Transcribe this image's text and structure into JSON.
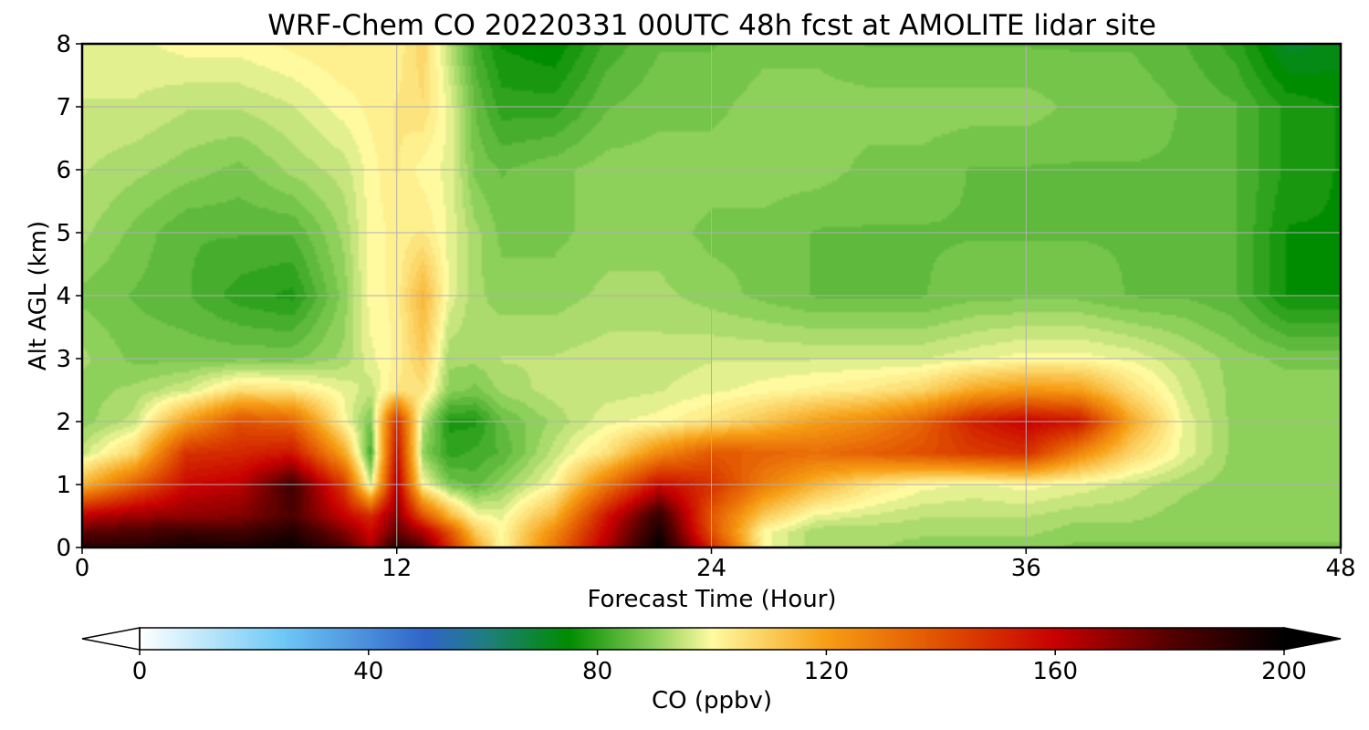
{
  "chart_data": {
    "type": "heatmap",
    "title": "WRF-Chem CO  20220331 00UTC 48h fcst at AMOLITE lidar site",
    "xlabel": "Forecast Time (Hour)",
    "ylabel": "Alt AGL (km)",
    "xlim": [
      0,
      48
    ],
    "ylim": [
      0,
      8
    ],
    "x_ticks": [
      "0",
      "12",
      "24",
      "36",
      "48"
    ],
    "x_tick_values": [
      0,
      12,
      24,
      36,
      48
    ],
    "y_ticks": [
      "0",
      "1",
      "2",
      "3",
      "4",
      "5",
      "6",
      "7",
      "8"
    ],
    "y_tick_values": [
      0,
      1,
      2,
      3,
      4,
      5,
      6,
      7,
      8
    ],
    "grid": true,
    "colorbar": {
      "label": "CO  (ppbv)",
      "range": [
        0,
        200
      ],
      "ticks": [
        "0",
        "40",
        "80",
        "120",
        "160",
        "200"
      ],
      "tick_values": [
        0,
        40,
        80,
        120,
        160,
        200
      ],
      "extend": "both",
      "colors": [
        {
          "value": 0,
          "color": "#ffffff"
        },
        {
          "value": 25,
          "color": "#6ec8f5"
        },
        {
          "value": 50,
          "color": "#2f64c8"
        },
        {
          "value": 60,
          "color": "#1f7d84"
        },
        {
          "value": 75,
          "color": "#008c00"
        },
        {
          "value": 90,
          "color": "#8dd05a"
        },
        {
          "value": 100,
          "color": "#fffaa0"
        },
        {
          "value": 120,
          "color": "#f79e14"
        },
        {
          "value": 140,
          "color": "#e05000"
        },
        {
          "value": 160,
          "color": "#c80000"
        },
        {
          "value": 180,
          "color": "#550000"
        },
        {
          "value": 200,
          "color": "#000000"
        }
      ]
    },
    "times": [
      0,
      2,
      4,
      6,
      8,
      10,
      11,
      12,
      13,
      14,
      15,
      16,
      18,
      20,
      22,
      24,
      26,
      28,
      30,
      32,
      34,
      36,
      38,
      40,
      42,
      44,
      46,
      48
    ],
    "altitudes": [
      0,
      0.25,
      0.5,
      1,
      1.5,
      2,
      2.5,
      3,
      4,
      5,
      6,
      7,
      8
    ],
    "values": [
      [
        192,
        190,
        196,
        194,
        198,
        182,
        165,
        190,
        180,
        150,
        120,
        100,
        130,
        165,
        200,
        150,
        100,
        92,
        92,
        90,
        90,
        90,
        88,
        88,
        88,
        88,
        88,
        88
      ],
      [
        178,
        182,
        186,
        184,
        192,
        172,
        158,
        178,
        165,
        140,
        110,
        100,
        125,
        160,
        195,
        140,
        100,
        92,
        92,
        92,
        92,
        92,
        90,
        90,
        90,
        90,
        90,
        90
      ],
      [
        162,
        168,
        170,
        172,
        182,
        160,
        150,
        172,
        140,
        115,
        100,
        98,
        115,
        155,
        188,
        138,
        110,
        98,
        96,
        94,
        94,
        94,
        92,
        92,
        90,
        90,
        90,
        90
      ],
      [
        115,
        136,
        158,
        162,
        185,
        145,
        95,
        165,
        100,
        88,
        85,
        90,
        100,
        130,
        158,
        148,
        128,
        115,
        105,
        100,
        98,
        100,
        98,
        95,
        92,
        90,
        90,
        90
      ],
      [
        95,
        108,
        148,
        150,
        155,
        118,
        82,
        158,
        90,
        80,
        82,
        84,
        95,
        105,
        125,
        138,
        135,
        132,
        136,
        140,
        145,
        148,
        126,
        108,
        98,
        90,
        90,
        90
      ],
      [
        90,
        95,
        120,
        140,
        135,
        100,
        88,
        150,
        94,
        78,
        78,
        86,
        92,
        98,
        100,
        105,
        112,
        120,
        125,
        135,
        152,
        160,
        155,
        118,
        98,
        90,
        90,
        90
      ],
      [
        90,
        92,
        96,
        106,
        104,
        98,
        95,
        104,
        105,
        90,
        88,
        92,
        95,
        95,
        96,
        98,
        100,
        102,
        104,
        108,
        118,
        122,
        120,
        106,
        96,
        90,
        90,
        90
      ],
      [
        92,
        88,
        88,
        88,
        88,
        92,
        98,
        102,
        110,
        92,
        92,
        94,
        94,
        95,
        95,
        96,
        96,
        96,
        96,
        96,
        98,
        100,
        100,
        98,
        94,
        90,
        88,
        88
      ],
      [
        88,
        86,
        84,
        80,
        78,
        90,
        100,
        102,
        115,
        98,
        92,
        90,
        90,
        92,
        92,
        90,
        88,
        86,
        86,
        86,
        88,
        88,
        88,
        86,
        86,
        84,
        76,
        76
      ],
      [
        92,
        88,
        84,
        84,
        84,
        92,
        100,
        102,
        104,
        98,
        92,
        88,
        88,
        90,
        90,
        88,
        88,
        86,
        86,
        86,
        86,
        86,
        86,
        86,
        86,
        84,
        76,
        76
      ],
      [
        94,
        92,
        90,
        88,
        92,
        95,
        100,
        104,
        100,
        98,
        88,
        86,
        88,
        90,
        90,
        90,
        90,
        90,
        88,
        88,
        86,
        86,
        86,
        86,
        86,
        84,
        78,
        76
      ],
      [
        96,
        96,
        94,
        94,
        96,
        100,
        102,
        104,
        106,
        98,
        86,
        80,
        80,
        86,
        88,
        88,
        90,
        90,
        90,
        90,
        90,
        90,
        88,
        88,
        86,
        84,
        78,
        76
      ],
      [
        98,
        98,
        100,
        100,
        102,
        104,
        102,
        102,
        108,
        94,
        82,
        76,
        74,
        82,
        86,
        86,
        88,
        88,
        86,
        86,
        86,
        86,
        86,
        86,
        84,
        80,
        70,
        72
      ]
    ]
  }
}
